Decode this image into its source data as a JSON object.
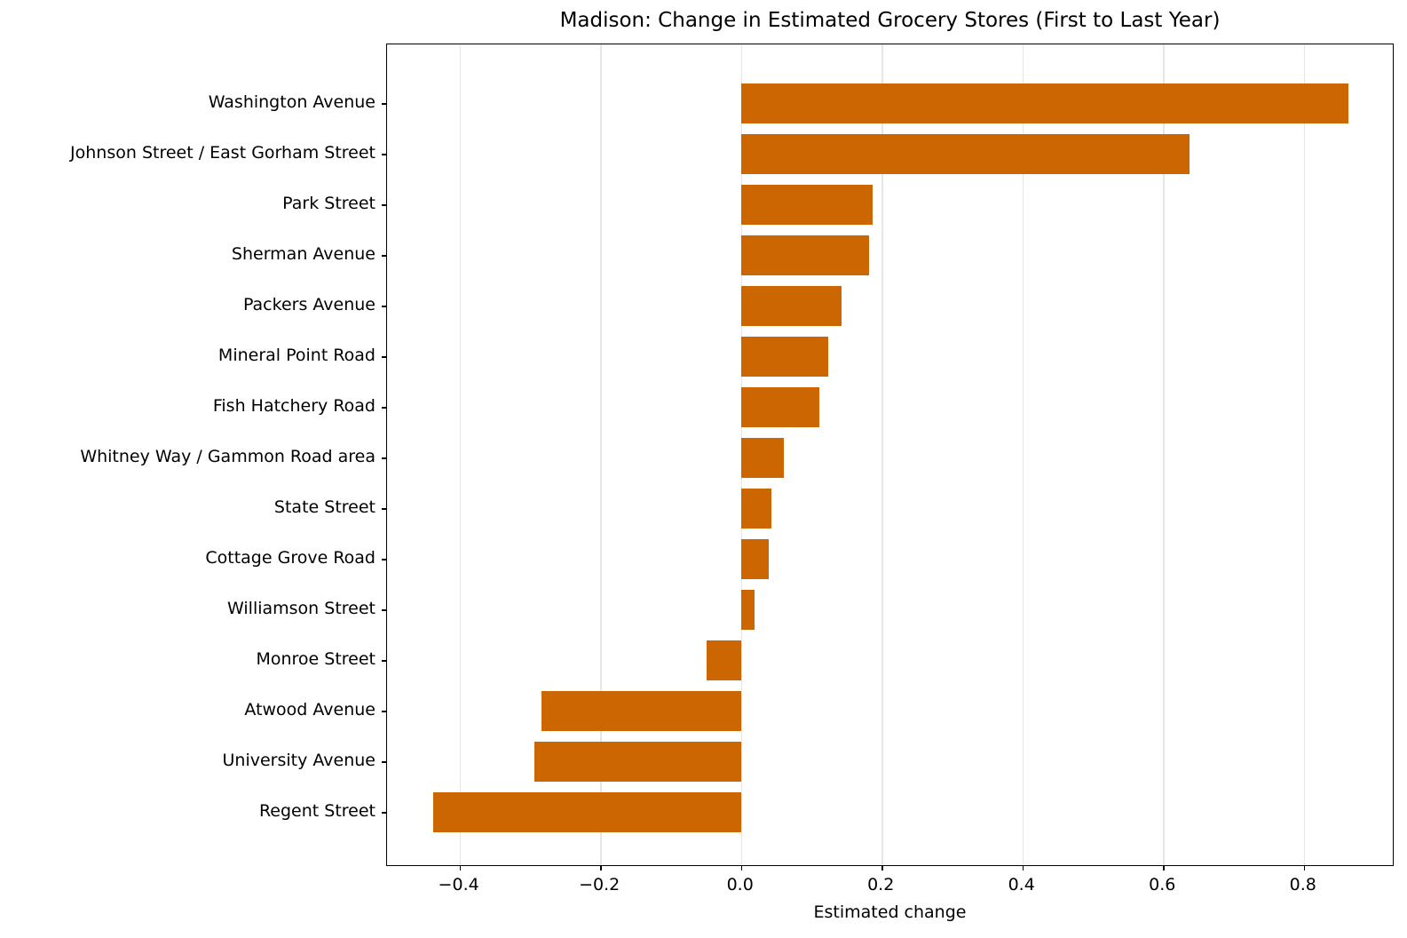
{
  "chart_data": {
    "type": "bar",
    "orientation": "horizontal",
    "title": "Madison: Change in Estimated Grocery Stores (First to Last Year)",
    "xlabel": "Estimated change",
    "ylabel": "",
    "xlim": [
      -0.503,
      0.929
    ],
    "xticks": [
      -0.4,
      -0.2,
      0.0,
      0.2,
      0.4,
      0.6,
      0.8
    ],
    "xtick_labels": [
      "−0.4",
      "−0.2",
      "0.0",
      "0.2",
      "0.4",
      "0.6",
      "0.8"
    ],
    "grid": "vertical",
    "legend": null,
    "bar_color": "#cc6600",
    "categories": [
      "Washington Avenue",
      "Johnson Street / East Gorham Street",
      "Park Street",
      "Sherman Avenue",
      "Packers Avenue",
      "Mineral Point Road",
      "Fish Hatchery Road",
      "Whitney Way / Gammon Road area",
      "State Street",
      "Cottage Grove Road",
      "Williamson Street",
      "Monroe Street",
      "Atwood Avenue",
      "University Avenue",
      "Regent Street"
    ],
    "values": [
      0.863,
      0.638,
      0.187,
      0.182,
      0.143,
      0.124,
      0.112,
      0.061,
      0.043,
      0.039,
      0.019,
      -0.049,
      -0.283,
      -0.294,
      -0.438
    ]
  }
}
